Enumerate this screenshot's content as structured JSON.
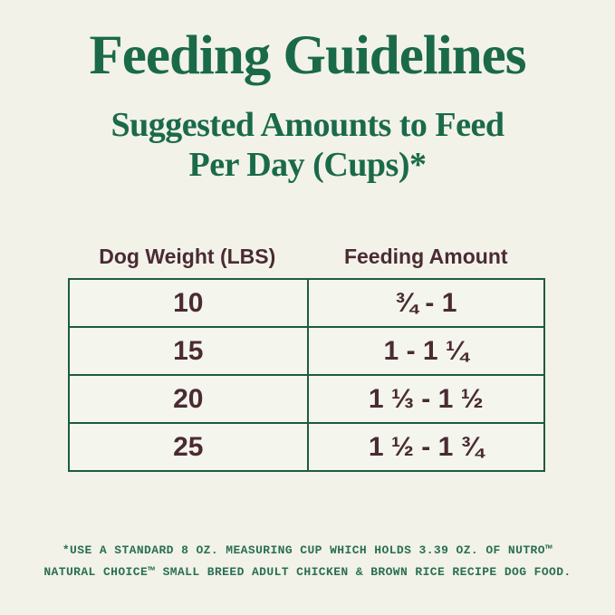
{
  "page": {
    "title": "Feeding Guidelines",
    "subtitle_line1": "Suggested Amounts to Feed",
    "subtitle_line2": "Per Day (Cups)*"
  },
  "table": {
    "columns": {
      "weight": "Dog Weight (LBS)",
      "amount": "Feeding Amount"
    },
    "rows": [
      {
        "weight": "10",
        "amount": "¾ - 1"
      },
      {
        "weight": "15",
        "amount": "1 - 1 ¼"
      },
      {
        "weight": "20",
        "amount": "1 ⅓ - 1 ½"
      },
      {
        "weight": "25",
        "amount": "1 ½ - 1 ¾"
      }
    ]
  },
  "footnote": {
    "line1": "*USE A STANDARD 8 OZ. MEASURING CUP WHICH HOLDS 3.39 OZ. OF NUTRO™",
    "line2": "NATURAL CHOICE™ SMALL BREED ADULT CHICKEN & BROWN RICE RECIPE DOG FOOD."
  },
  "colors": {
    "background": "#f2f2e9",
    "heading_green": "#1a6a49",
    "footnote_green": "#2a6f52",
    "table_border_green": "#1f5b41",
    "text_brown": "#4a2b33"
  },
  "chart_data": {
    "type": "table",
    "title": "Feeding Guidelines",
    "subtitle": "Suggested Amounts to Feed Per Day (Cups)*",
    "columns": [
      "Dog Weight (LBS)",
      "Feeding Amount"
    ],
    "rows": [
      [
        "10",
        "¾ - 1"
      ],
      [
        "15",
        "1 - 1 ¼"
      ],
      [
        "20",
        "1 ⅓ - 1 ½"
      ],
      [
        "25",
        "1 ½ - 1 ¾"
      ]
    ],
    "weights_lbs": [
      10,
      15,
      20,
      25
    ],
    "feeding_cups_min": [
      0.75,
      1,
      1.333,
      1.5
    ],
    "feeding_cups_max": [
      1,
      1.25,
      1.5,
      1.75
    ],
    "footnote": "*USE A STANDARD 8 OZ. MEASURING CUP WHICH HOLDS 3.39 OZ. OF NUTRO™ NATURAL CHOICE™ SMALL BREED ADULT CHICKEN & BROWN RICE RECIPE DOG FOOD."
  }
}
